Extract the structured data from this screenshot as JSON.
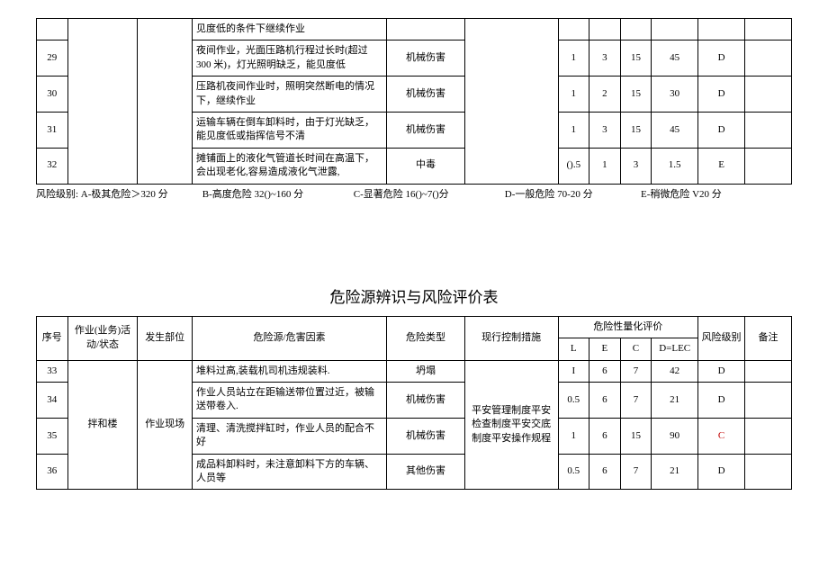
{
  "table1": {
    "row0_hazard": "见度低的条件下继续作业",
    "rows": [
      {
        "seq": "29",
        "hazard": "夜间作业，光面压路机行程过长时(超过 300 米)，灯光照明缺乏，能见度低",
        "type": "机械伤害",
        "L": "1",
        "E": "3",
        "C": "15",
        "D": "45",
        "lvl": "D"
      },
      {
        "seq": "30",
        "hazard": "压路机夜间作业时，照明突然断电的情况下，继续作业",
        "type": "机械伤害",
        "L": "1",
        "E": "2",
        "C": "15",
        "D": "30",
        "lvl": "D"
      },
      {
        "seq": "31",
        "hazard": "运输车辆在倒车卸料时，由于灯光缺乏，能见度低或指挥信号不清",
        "type": "机械伤害",
        "L": "1",
        "E": "3",
        "C": "15",
        "D": "45",
        "lvl": "D"
      },
      {
        "seq": "32",
        "hazard": "摊铺面上的液化气管道长时间在高温下，会出现老化,容易造成液化气泄露,",
        "type": "中毒",
        "L": "().5",
        "E": "1",
        "C": "3",
        "D": "1.5",
        "lvl": "E"
      }
    ]
  },
  "legend": {
    "a": "风险级别: A-极其危险＞320 分",
    "b": "B-高度危险 32()~160 分",
    "c": "C-显著危险 16()~7()分",
    "d": "D-一般危险 70-20 分",
    "e": "E-稍微危险 V20 分"
  },
  "title2": "危险源辨识与风险评价表",
  "headers": {
    "seq": "序号",
    "act": "作业(业务)活动/状态",
    "loc": "发生部位",
    "hazard": "危险源/危害因素",
    "type": "危险类型",
    "ctrl": "现行控制措施",
    "quant": "危险性量化评价",
    "L": "L",
    "E": "E",
    "C": "C",
    "D": "D=LEC",
    "lvl": "风险级别",
    "note": "备注"
  },
  "table2": {
    "act": "拌和楼",
    "loc": "作业现场",
    "ctrl": "平安管理制度平安检查制度平安交底制度平安操作规程",
    "rows": [
      {
        "seq": "33",
        "hazard": "堆料过高,装载机司机违规装料.",
        "type": "坍塌",
        "L": "I",
        "E": "6",
        "C": "7",
        "D": "42",
        "lvl": "D"
      },
      {
        "seq": "34",
        "hazard": "作业人员站立在距输送带位置过近，被输送带卷入.",
        "type": "机械伤害",
        "L": "0.5",
        "E": "6",
        "C": "7",
        "D": "21",
        "lvl": "D"
      },
      {
        "seq": "35",
        "hazard": "清理、清洗搅拌缸时，作业人员的配合不好",
        "type": "机械伤害",
        "L": "1",
        "E": "6",
        "C": "15",
        "D": "90",
        "lvl": "C",
        "lvl_red": true
      },
      {
        "seq": "36",
        "hazard": "成品料卸料时，未注意卸料下方的车辆、人员等",
        "type": "其他伤害",
        "L": "0.5",
        "E": "6",
        "C": "7",
        "D": "21",
        "lvl": "D"
      }
    ]
  }
}
